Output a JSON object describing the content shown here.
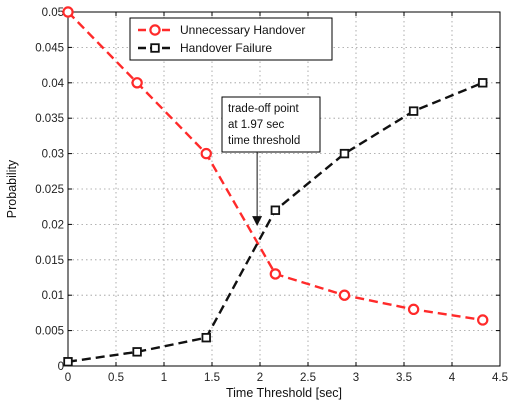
{
  "chart_data": {
    "type": "line",
    "title": "",
    "xlabel": "Time Threshold [sec]",
    "ylabel": "Probability",
    "xlim": [
      0,
      4.5
    ],
    "ylim": [
      0,
      0.05
    ],
    "xticks": [
      0,
      0.5,
      1,
      1.5,
      2,
      2.5,
      3,
      3.5,
      4,
      4.5
    ],
    "yticks": [
      0,
      0.005,
      0.01,
      0.015,
      0.02,
      0.025,
      0.03,
      0.035,
      0.04,
      0.045,
      0.05
    ],
    "xtick_labels": [
      "0",
      "0.5",
      "1",
      "1.5",
      "2",
      "2.5",
      "3",
      "3.5",
      "4",
      "4.5"
    ],
    "ytick_labels": [
      "0",
      "0.005",
      "0.01",
      "0.015",
      "0.02",
      "0.025",
      "0.03",
      "0.035",
      "0.04",
      "0.045",
      "0.05"
    ],
    "grid": true,
    "legend_position": "top-left",
    "series": [
      {
        "name": "Unnecessary Handover",
        "color": "#ff2a2a",
        "marker": "circle",
        "x": [
          0,
          0.72,
          1.44,
          2.16,
          2.88,
          3.6,
          4.32
        ],
        "y": [
          0.05,
          0.04,
          0.03,
          0.013,
          0.01,
          0.008,
          0.0065
        ]
      },
      {
        "name": "Handover Failure",
        "color": "#111111",
        "marker": "square",
        "x": [
          0,
          0.72,
          1.44,
          2.16,
          2.88,
          3.6,
          4.32
        ],
        "y": [
          0.0006,
          0.002,
          0.004,
          0.022,
          0.03,
          0.036,
          0.04
        ]
      }
    ],
    "annotation": {
      "lines": [
        "trade-off point",
        "at 1.97 sec",
        "time threshold"
      ],
      "arrow_target": [
        1.97,
        0.0192
      ]
    }
  }
}
